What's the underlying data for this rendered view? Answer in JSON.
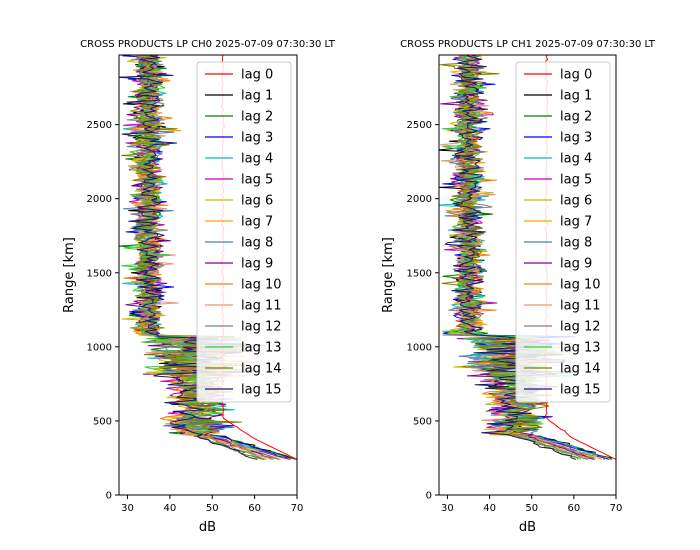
{
  "figure": {
    "background": "#ffffff"
  },
  "chart_data": [
    {
      "type": "line",
      "title": "CROSS PRODUCTS LP CH0 2025-07-09 07:30:30 LT",
      "xlabel": "dB",
      "ylabel": "Range [km]",
      "xlim": [
        28,
        70
      ],
      "ylim": [
        0,
        2970
      ],
      "xticks": [
        30,
        40,
        50,
        60,
        70
      ],
      "yticks": [
        0,
        500,
        1000,
        1500,
        2000,
        2500
      ],
      "legend_position": "upper right",
      "grid": false,
      "profile": {
        "bottom_range_km": 240,
        "transition_top_km": 1070,
        "noise_floor_db": 35,
        "lag0_level_db": 52.5,
        "near_range_peak_db": 70
      },
      "series": [
        {
          "name": "lag 0",
          "color": "#ff0000"
        },
        {
          "name": "lag 1",
          "color": "#000000"
        },
        {
          "name": "lag 2",
          "color": "#008000"
        },
        {
          "name": "lag 3",
          "color": "#0000ff"
        },
        {
          "name": "lag 4",
          "color": "#00bfbf"
        },
        {
          "name": "lag 5",
          "color": "#bf00bf"
        },
        {
          "name": "lag 6",
          "color": "#bfbf00"
        },
        {
          "name": "lag 7",
          "color": "#ffa500"
        },
        {
          "name": "lag 8",
          "color": "#4682b4"
        },
        {
          "name": "lag 9",
          "color": "#800080"
        },
        {
          "name": "lag 10",
          "color": "#ff7f0e"
        },
        {
          "name": "lag 11",
          "color": "#e9967a"
        },
        {
          "name": "lag 12",
          "color": "#808080"
        },
        {
          "name": "lag 13",
          "color": "#32cd32"
        },
        {
          "name": "lag 14",
          "color": "#808000"
        },
        {
          "name": "lag 15",
          "color": "#191970"
        }
      ]
    },
    {
      "type": "line",
      "title": "CROSS PRODUCTS LP CH1 2025-07-09 07:30:30 LT",
      "xlabel": "dB",
      "ylabel": "Range [km]",
      "xlim": [
        28,
        70
      ],
      "ylim": [
        0,
        2970
      ],
      "xticks": [
        30,
        40,
        50,
        60,
        70
      ],
      "yticks": [
        0,
        500,
        1000,
        1500,
        2000,
        2500
      ],
      "legend_position": "upper right",
      "grid": false,
      "profile": {
        "bottom_range_km": 240,
        "transition_top_km": 1070,
        "noise_floor_db": 35,
        "lag0_level_db": 53.5,
        "near_range_peak_db": 70
      },
      "series": [
        {
          "name": "lag 0",
          "color": "#ff0000"
        },
        {
          "name": "lag 1",
          "color": "#000000"
        },
        {
          "name": "lag 2",
          "color": "#008000"
        },
        {
          "name": "lag 3",
          "color": "#0000ff"
        },
        {
          "name": "lag 4",
          "color": "#00bfbf"
        },
        {
          "name": "lag 5",
          "color": "#bf00bf"
        },
        {
          "name": "lag 6",
          "color": "#bfbf00"
        },
        {
          "name": "lag 7",
          "color": "#ffa500"
        },
        {
          "name": "lag 8",
          "color": "#4682b4"
        },
        {
          "name": "lag 9",
          "color": "#800080"
        },
        {
          "name": "lag 10",
          "color": "#ff7f0e"
        },
        {
          "name": "lag 11",
          "color": "#e9967a"
        },
        {
          "name": "lag 12",
          "color": "#808080"
        },
        {
          "name": "lag 13",
          "color": "#32cd32"
        },
        {
          "name": "lag 14",
          "color": "#808000"
        },
        {
          "name": "lag 15",
          "color": "#191970"
        }
      ]
    }
  ]
}
